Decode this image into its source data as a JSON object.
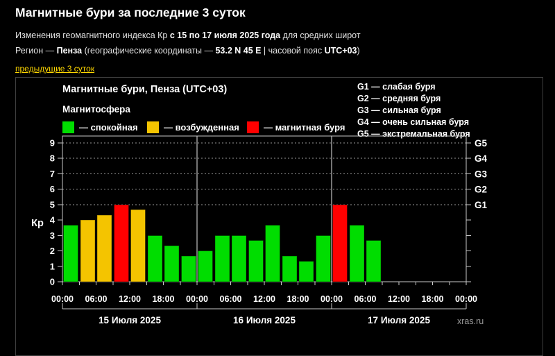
{
  "header": {
    "title": "Магнитные бури за последние 3 суток",
    "line1": [
      {
        "t": "Изменения геомагнитного индекса Кр ",
        "b": false
      },
      {
        "t": "с 15 по 17 июля 2025 года",
        "b": true
      },
      {
        "t": " для средних широт",
        "b": false
      }
    ],
    "line2": [
      {
        "t": "Регион — ",
        "b": false
      },
      {
        "t": "Пенза",
        "b": true
      },
      {
        "t": " (географические координаты — ",
        "b": false
      },
      {
        "t": "53.2 N 45 E",
        "b": true
      },
      {
        "t": " | часовой пояс ",
        "b": false
      },
      {
        "t": "UTC+03",
        "b": true
      },
      {
        "t": ")",
        "b": false
      }
    ],
    "link_label": "предыдущие 3 суток",
    "link_color": "#ffd800"
  },
  "panel": {
    "chart_title": "Магнитные бури, Пенза (UTC+03)",
    "legend_title": "Магнитосфера",
    "legend": [
      {
        "key": "quiet",
        "label": "— спокойная"
      },
      {
        "key": "excited",
        "label": "— возбужденная"
      },
      {
        "key": "storm",
        "label": "— магнитная буря"
      }
    ],
    "g_scale": [
      "G1 — слабая буря",
      "G2 — средняя буря",
      "G3 — сильная буря",
      "G4 — очень сильная буря",
      "G5 — экстремальная буря"
    ],
    "watermark": "xras.ru"
  },
  "chart_data": {
    "type": "bar",
    "title": "Магнитные бури, Пенза (UTC+03)",
    "ylabel": "Кр",
    "ylim": [
      0,
      9.45
    ],
    "yticks": [
      0,
      1,
      2,
      3,
      4,
      5,
      6,
      7,
      8,
      9
    ],
    "right_axis": [
      {
        "label": "G1",
        "kp": 5
      },
      {
        "label": "G2",
        "kp": 6
      },
      {
        "label": "G3",
        "kp": 7
      },
      {
        "label": "G4",
        "kp": 8
      },
      {
        "label": "G5",
        "kp": 9
      }
    ],
    "interval_hours": 3,
    "total_hours": 72,
    "values": [
      3.67,
      4.0,
      4.33,
      5.0,
      4.67,
      3.0,
      2.33,
      1.67,
      2.0,
      3.0,
      3.0,
      2.67,
      3.67,
      1.67,
      1.33,
      3.0,
      5.0,
      3.67,
      2.67
    ],
    "colors": {
      "quiet": "#00dd00",
      "excited": "#f4c400",
      "storm": "#ff0000"
    },
    "thresholds": {
      "excited": 4,
      "storm": 5
    },
    "x_tick_labels": [
      "00:00",
      "06:00",
      "12:00",
      "18:00",
      "00:00",
      "06:00",
      "12:00",
      "18:00",
      "00:00",
      "06:00",
      "12:00",
      "18:00",
      "00:00"
    ],
    "days": [
      "15 Июля 2025",
      "16 Июля 2025",
      "17 Июля 2025"
    ],
    "grid": "dashed horizontal lines at Kp 5-9 (G1-G5)",
    "legend_position": "top"
  }
}
